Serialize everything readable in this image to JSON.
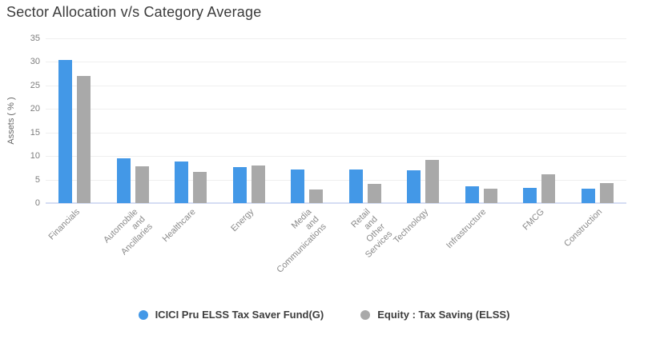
{
  "title": "Sector Allocation v/s Category Average",
  "chart_data": {
    "type": "bar",
    "title": "Sector Allocation v/s Category Average",
    "xlabel": "",
    "ylabel": "Assets ( % )",
    "ylim": [
      0,
      35
    ],
    "ytick_step": 5,
    "grid": true,
    "legend_position": "bottom",
    "categories": [
      "Financials",
      "Automobile and Ancillaries",
      "Healthcare",
      "Energy",
      "Media and Communications",
      "Retail and Other Services",
      "Technology",
      "Infrastructure",
      "FMCG",
      "Construction"
    ],
    "category_lines": [
      [
        "Financials"
      ],
      [
        "Automobile",
        "and",
        "Ancillaries"
      ],
      [
        "Healthcare"
      ],
      [
        "Energy"
      ],
      [
        "Media",
        "and",
        "Communications"
      ],
      [
        "Retail",
        "and",
        "Other",
        "Services"
      ],
      [
        "Technology"
      ],
      [
        "Infrastructure"
      ],
      [
        "FMCG"
      ],
      [
        "Construction"
      ]
    ],
    "series": [
      {
        "key": "fund",
        "name": "ICICI Pru ELSS Tax Saver Fund(G)",
        "color": "#4398E7",
        "values": [
          30.5,
          9.6,
          8.9,
          7.6,
          7.2,
          7.2,
          7.0,
          3.6,
          3.2,
          3.0
        ]
      },
      {
        "key": "category",
        "name": "Equity : Tax Saving (ELSS)",
        "color": "#A9A9A9",
        "values": [
          27.0,
          7.8,
          6.6,
          8.0,
          2.9,
          4.0,
          9.1,
          3.0,
          6.2,
          4.3
        ]
      }
    ]
  }
}
